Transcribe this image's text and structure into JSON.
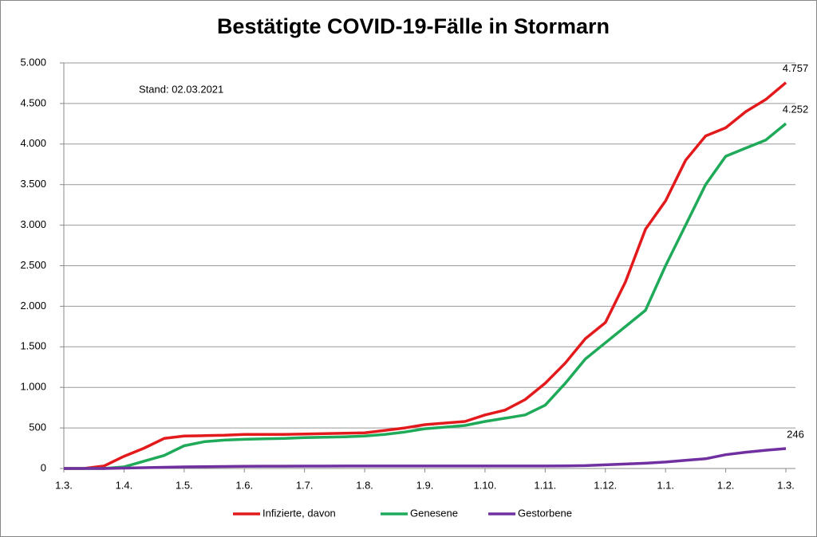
{
  "chart_data": {
    "type": "line",
    "title": "Bestätigte COVID-19-Fälle in Stormarn",
    "annotation": "Stand: 02.03.2021",
    "categories": [
      "1.3.",
      null,
      null,
      "1.4.",
      null,
      null,
      "1.5.",
      null,
      null,
      "1.6.",
      null,
      null,
      "1.7.",
      null,
      null,
      "1.8.",
      null,
      null,
      "1.9.",
      null,
      null,
      "1.10.",
      null,
      null,
      "1.11.",
      null,
      null,
      "1.12.",
      null,
      null,
      "1.1.",
      null,
      null,
      "1.2.",
      null,
      null,
      "1.3."
    ],
    "series": [
      {
        "name": "Infizierte, davon",
        "color": "#e31a1c",
        "values": [
          0,
          0,
          30,
          150,
          250,
          370,
          400,
          405,
          410,
          420,
          420,
          420,
          425,
          430,
          435,
          440,
          470,
          500,
          540,
          560,
          580,
          660,
          720,
          850,
          1050,
          1300,
          1600,
          1800,
          2300,
          2950,
          3300,
          3800,
          4100,
          4200,
          4400,
          4550,
          4757
        ],
        "value_labels": [
          null,
          null,
          null,
          null,
          null,
          null,
          null,
          null,
          null,
          null,
          null,
          null,
          null,
          null,
          null,
          null,
          null,
          null,
          null,
          null,
          null,
          null,
          null,
          null,
          null,
          null,
          null,
          null,
          null,
          null,
          null,
          null,
          null,
          null,
          null,
          null,
          "4.757"
        ]
      },
      {
        "name": "Genesene",
        "color": "#1faa5a",
        "values": [
          0,
          0,
          0,
          20,
          90,
          160,
          280,
          330,
          350,
          360,
          365,
          370,
          380,
          385,
          390,
          400,
          420,
          450,
          490,
          510,
          530,
          580,
          620,
          660,
          780,
          1050,
          1350,
          1550,
          1750,
          1950,
          2500,
          3000,
          3500,
          3850,
          3950,
          4050,
          4252
        ],
        "value_labels": [
          null,
          null,
          null,
          null,
          null,
          null,
          null,
          null,
          null,
          null,
          null,
          null,
          null,
          null,
          null,
          null,
          null,
          null,
          null,
          null,
          null,
          null,
          null,
          null,
          null,
          null,
          null,
          null,
          null,
          null,
          null,
          null,
          null,
          null,
          null,
          null,
          "4.252"
        ]
      },
      {
        "name": "Gestorbene",
        "color": "#7030a0",
        "values": [
          0,
          0,
          0,
          5,
          10,
          15,
          20,
          22,
          25,
          27,
          28,
          28,
          29,
          29,
          30,
          30,
          30,
          30,
          30,
          30,
          30,
          30,
          30,
          30,
          30,
          32,
          35,
          45,
          55,
          65,
          80,
          100,
          120,
          170,
          200,
          225,
          246
        ],
        "value_labels": [
          null,
          null,
          null,
          null,
          null,
          null,
          null,
          null,
          null,
          null,
          null,
          null,
          null,
          null,
          null,
          null,
          null,
          null,
          null,
          null,
          null,
          null,
          null,
          null,
          null,
          null,
          null,
          null,
          null,
          null,
          null,
          null,
          null,
          null,
          null,
          null,
          "246"
        ]
      }
    ],
    "ylim": [
      0,
      5000
    ],
    "yticks": [
      0,
      500,
      {
        "value": 1000,
        "label": "1.000"
      },
      {
        "value": 1500,
        "label": "1.500"
      },
      {
        "value": 2000,
        "label": "2.000"
      },
      {
        "value": 2500,
        "label": "2.500"
      },
      {
        "value": 3000,
        "label": "3.000"
      },
      {
        "value": 3500,
        "label": "3.500"
      },
      {
        "value": 4000,
        "label": "4.000"
      },
      {
        "value": 4500,
        "label": "4.500"
      },
      {
        "value": 5000,
        "label": "5.000"
      }
    ],
    "grid": true,
    "legend": "bottom"
  }
}
